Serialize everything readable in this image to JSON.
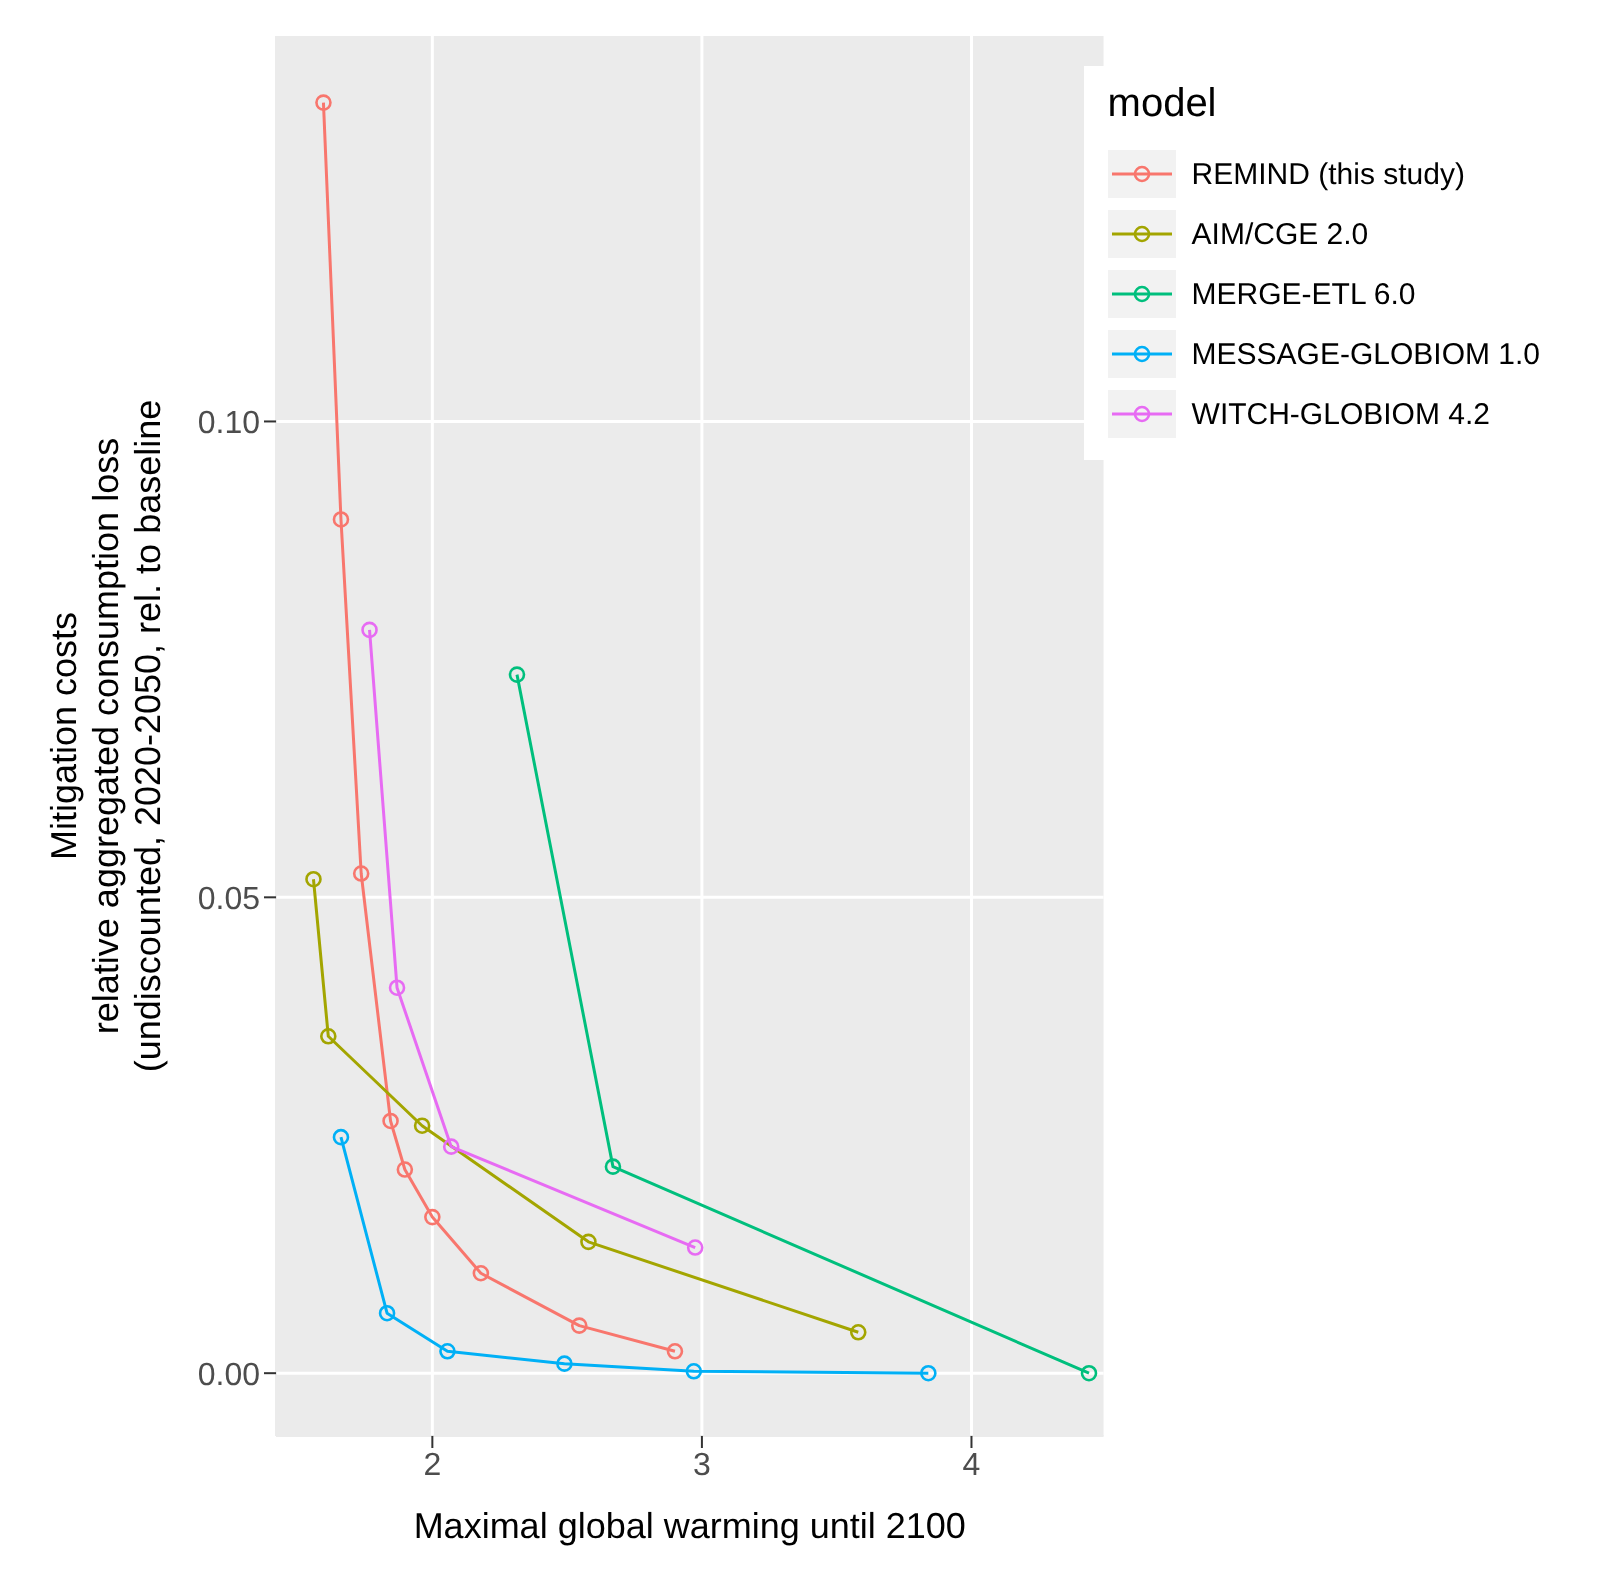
{
  "chart_data": {
    "type": "line",
    "xlabel": "Maximal global warming until 2100",
    "ylabel": "Mitigation costs\nrelative aggregated consumption loss\n(undiscounted, 2020-2050, rel. to baseline",
    "legend_title": "model",
    "xlim": [
      1.42,
      4.49
    ],
    "xticks": [
      2,
      3,
      4
    ],
    "ylim": [
      -0.0066,
      0.1405
    ],
    "yticks": [
      {
        "value": 0,
        "label": "0.00"
      },
      {
        "value": 0.05,
        "label": "0.05"
      },
      {
        "value": 0.1,
        "label": "0.10"
      }
    ],
    "grid": true,
    "legend": "top right",
    "marker": "circle",
    "line_style": "solid",
    "series": [
      {
        "name": "REMIND (this study)",
        "color": "#f8766d",
        "x": [
          1.596,
          1.661,
          1.736,
          1.845,
          1.898,
          2.0,
          2.18,
          2.545,
          2.9
        ],
        "values": [
          0.1335,
          0.0897,
          0.0525,
          0.0265,
          0.0214,
          0.0164,
          0.0105,
          0.005,
          0.0023
        ]
      },
      {
        "name": "AIM/CGE 2.0",
        "color": "#a3a500",
        "x": [
          1.559,
          1.614,
          1.962,
          2.579,
          3.58
        ],
        "values": [
          0.0519,
          0.0354,
          0.026,
          0.0138,
          0.0043
        ]
      },
      {
        "name": "MERGE-ETL 6.0",
        "color": "#00bf7d",
        "x": [
          2.314,
          2.67,
          4.436
        ],
        "values": [
          0.0734,
          0.0217,
          0.0
        ]
      },
      {
        "name": "MESSAGE-GLOBIOM 1.0",
        "color": "#00b0f6",
        "x": [
          1.661,
          1.832,
          2.056,
          2.49,
          2.97,
          3.84
        ],
        "values": [
          0.0248,
          0.0063,
          0.0023,
          0.001,
          0.0002,
          0.0
        ]
      },
      {
        "name": "WITCH-GLOBIOM 4.2",
        "color": "#e76bf3",
        "x": [
          1.767,
          1.869,
          2.07,
          2.975
        ],
        "values": [
          0.0781,
          0.0405,
          0.0238,
          0.0132
        ]
      }
    ]
  }
}
